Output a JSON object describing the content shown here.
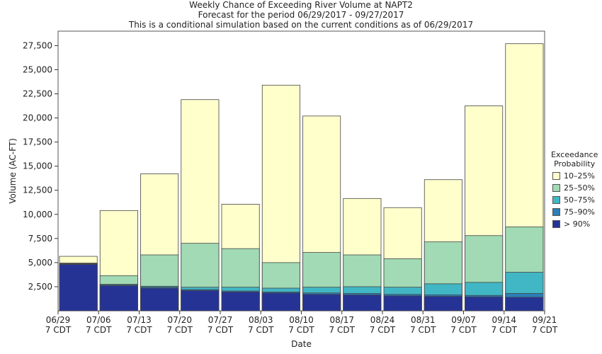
{
  "titles": {
    "line1": "Weekly Chance of Exceeding River Volume at NAPT2",
    "line2": "Forecast for the period 06/29/2017 - 09/27/2017",
    "line3": "This is a conditional simulation based on the current conditions as of 06/29/2017"
  },
  "legend": {
    "title_line1": "Exceedance",
    "title_line2": "Probability",
    "items": [
      {
        "label": "10–25%",
        "color": "#ffffcc"
      },
      {
        "label": "25–50%",
        "color": "#a1dab4"
      },
      {
        "label": "50–75%",
        "color": "#41b6c4"
      },
      {
        "label": "75–90%",
        "color": "#2c7fb8"
      },
      {
        "label": "> 90%",
        "color": "#253494"
      }
    ]
  },
  "chart_data": {
    "type": "bar",
    "stacked": true,
    "title": "Weekly Chance of Exceeding River Volume at NAPT2",
    "xlabel": "Date",
    "ylabel": "Volume (AC-FT)",
    "ylim": [
      0,
      29000
    ],
    "yticks": [
      2500,
      5000,
      7500,
      10000,
      12500,
      15000,
      17500,
      20000,
      22500,
      25000,
      27500
    ],
    "ytick_labels": [
      "2,500",
      "5,000",
      "7,500",
      "10,000",
      "12,500",
      "15,000",
      "17,500",
      "20,000",
      "22,500",
      "25,000",
      "27,500"
    ],
    "x_tick_dates": [
      "06/29",
      "07/06",
      "07/13",
      "07/20",
      "07/27",
      "08/03",
      "08/10",
      "08/17",
      "08/24",
      "08/31",
      "09/07",
      "09/14",
      "09/21"
    ],
    "x_tick_suffix": "7 CDT",
    "bars_upper_bound_levels": [
      {
        "name": "> 90%",
        "values": [
          4800,
          2600,
          2350,
          2100,
          1950,
          1850,
          1700,
          1650,
          1550,
          1500,
          1450,
          1400
        ]
      },
      {
        "name": "75–90%",
        "values": [
          4850,
          2700,
          2450,
          2200,
          2050,
          1950,
          1850,
          1800,
          1700,
          1650,
          1600,
          1800
        ]
      },
      {
        "name": "50–75%",
        "values": [
          4900,
          2750,
          2550,
          2450,
          2450,
          2350,
          2450,
          2500,
          2450,
          2800,
          2950,
          4000
        ]
      },
      {
        "name": "25–50%",
        "values": [
          4950,
          3650,
          5800,
          7000,
          6450,
          5000,
          6050,
          5800,
          5400,
          7150,
          7800,
          8700
        ]
      },
      {
        "name": "10–25%",
        "values": [
          5650,
          10400,
          14200,
          21900,
          11050,
          23400,
          20200,
          11650,
          10700,
          13600,
          21250,
          27700
        ]
      }
    ]
  }
}
